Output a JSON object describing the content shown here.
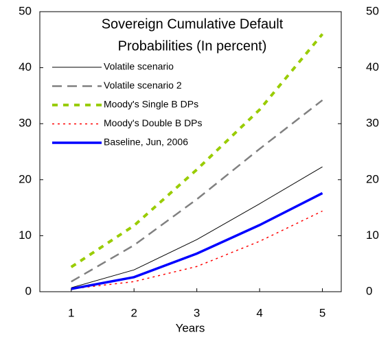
{
  "chart_data": {
    "type": "line",
    "title": [
      "Sovereign Cumulative Default",
      "Probabilities (In percent)"
    ],
    "x_label": "Years",
    "x": [
      1,
      2,
      3,
      4,
      5
    ],
    "xlim": [
      0.5,
      5.3
    ],
    "xticks": [
      1,
      2,
      3,
      4,
      5
    ],
    "ylim": [
      0,
      50
    ],
    "yticks": [
      0,
      10,
      20,
      30,
      40,
      50
    ],
    "y2lim": [
      0,
      50
    ],
    "y2ticks": [
      0,
      10,
      20,
      30,
      40,
      50
    ],
    "legend": "upper-left",
    "grid": false,
    "series": [
      {
        "name": "Volatile scenario",
        "color": "#000000",
        "style": "solid",
        "width": 1,
        "values": [
          0.7,
          3.9,
          9.3,
          15.7,
          22.3
        ]
      },
      {
        "name": "Volatile scenario 2",
        "color": "#808080",
        "style": "dashed",
        "width": 2.5,
        "values": [
          1.8,
          8.3,
          16.5,
          25.5,
          34.2
        ]
      },
      {
        "name": "Moody's Single B DPs",
        "color": "#99cc00",
        "style": "dotted",
        "width": 4,
        "values": [
          4.4,
          11.8,
          21.8,
          32.5,
          46.0
        ]
      },
      {
        "name": "Moody's Double B DPs",
        "color": "#ff0000",
        "style": "dotted",
        "width": 1.5,
        "values": [
          0.5,
          1.8,
          4.5,
          9.0,
          14.4
        ]
      },
      {
        "name": "Baseline, Jun, 2006",
        "color": "#0000ff",
        "style": "solid",
        "width": 3.5,
        "values": [
          0.5,
          2.6,
          6.8,
          11.9,
          17.6
        ]
      }
    ]
  }
}
